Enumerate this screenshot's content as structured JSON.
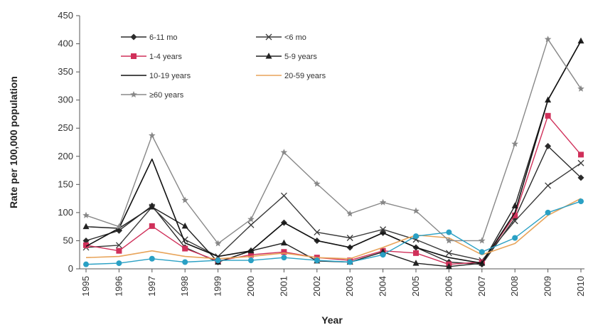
{
  "chart_data": {
    "type": "line",
    "title": "",
    "xlabel": "Year",
    "ylabel": "Rate per 100,000 population",
    "x": [
      1995,
      1996,
      1997,
      1998,
      1999,
      2000,
      2001,
      2002,
      2003,
      2004,
      2005,
      2006,
      2007,
      2008,
      2009,
      2010
    ],
    "x_tick_labels": [
      "1995",
      "1996",
      "1997",
      "1998",
      "1999",
      "2000",
      "2001",
      "2002",
      "2003",
      "2004",
      "2005",
      "2006",
      "2007",
      "2008",
      "2009",
      "2010"
    ],
    "ylim": [
      0,
      450
    ],
    "y_ticks": [
      0,
      50,
      100,
      150,
      200,
      250,
      300,
      350,
      400,
      450
    ],
    "y_tick_labels": [
      "0",
      "50",
      "100",
      "150",
      "200",
      "250",
      "300",
      "350",
      "400",
      "450"
    ],
    "grid": false,
    "legend_position": "top-left inside",
    "series": [
      {
        "name": "6-11 mo",
        "color": "#2b2b2b",
        "marker": "diamond",
        "values": [
          50,
          68,
          112,
          38,
          12,
          32,
          82,
          50,
          38,
          64,
          38,
          12,
          8,
          90,
          218,
          162
        ]
      },
      {
        "name": "<6 mo",
        "color": "#3a3a3a",
        "marker": "x",
        "values": [
          38,
          42,
          110,
          52,
          22,
          78,
          130,
          65,
          55,
          70,
          52,
          28,
          15,
          85,
          148,
          188
        ]
      },
      {
        "name": "1-4 years",
        "color": "#d0305a",
        "marker": "square",
        "values": [
          42,
          32,
          76,
          36,
          14,
          25,
          30,
          20,
          15,
          32,
          28,
          8,
          12,
          95,
          272,
          203
        ]
      },
      {
        "name": "5-9 years",
        "color": "#222222",
        "marker": "triangle",
        "values": [
          75,
          72,
          110,
          76,
          12,
          32,
          46,
          14,
          12,
          30,
          10,
          4,
          10,
          112,
          300,
          405
        ]
      },
      {
        "name": "10-19 years",
        "color": "#111111",
        "marker": "none",
        "values": [
          40,
          72,
          195,
          46,
          22,
          32,
          82,
          50,
          38,
          64,
          38,
          20,
          10,
          100,
          300,
          405
        ]
      },
      {
        "name": "20-59 years",
        "color": "#e8a45a",
        "marker": "none",
        "values": [
          20,
          22,
          32,
          22,
          18,
          22,
          28,
          20,
          18,
          38,
          60,
          55,
          25,
          45,
          95,
          125
        ]
      },
      {
        "name": "≥60 years",
        "color": "#888888",
        "marker": "star",
        "values": [
          95,
          75,
          237,
          122,
          45,
          88,
          207,
          151,
          98,
          118,
          103,
          50,
          50,
          222,
          408,
          320
        ]
      },
      {
        "name": "",
        "color": "#2aa0c4",
        "marker": "circle",
        "values": [
          8,
          10,
          18,
          12,
          15,
          15,
          20,
          15,
          12,
          25,
          58,
          65,
          30,
          55,
          100,
          120
        ]
      }
    ]
  }
}
